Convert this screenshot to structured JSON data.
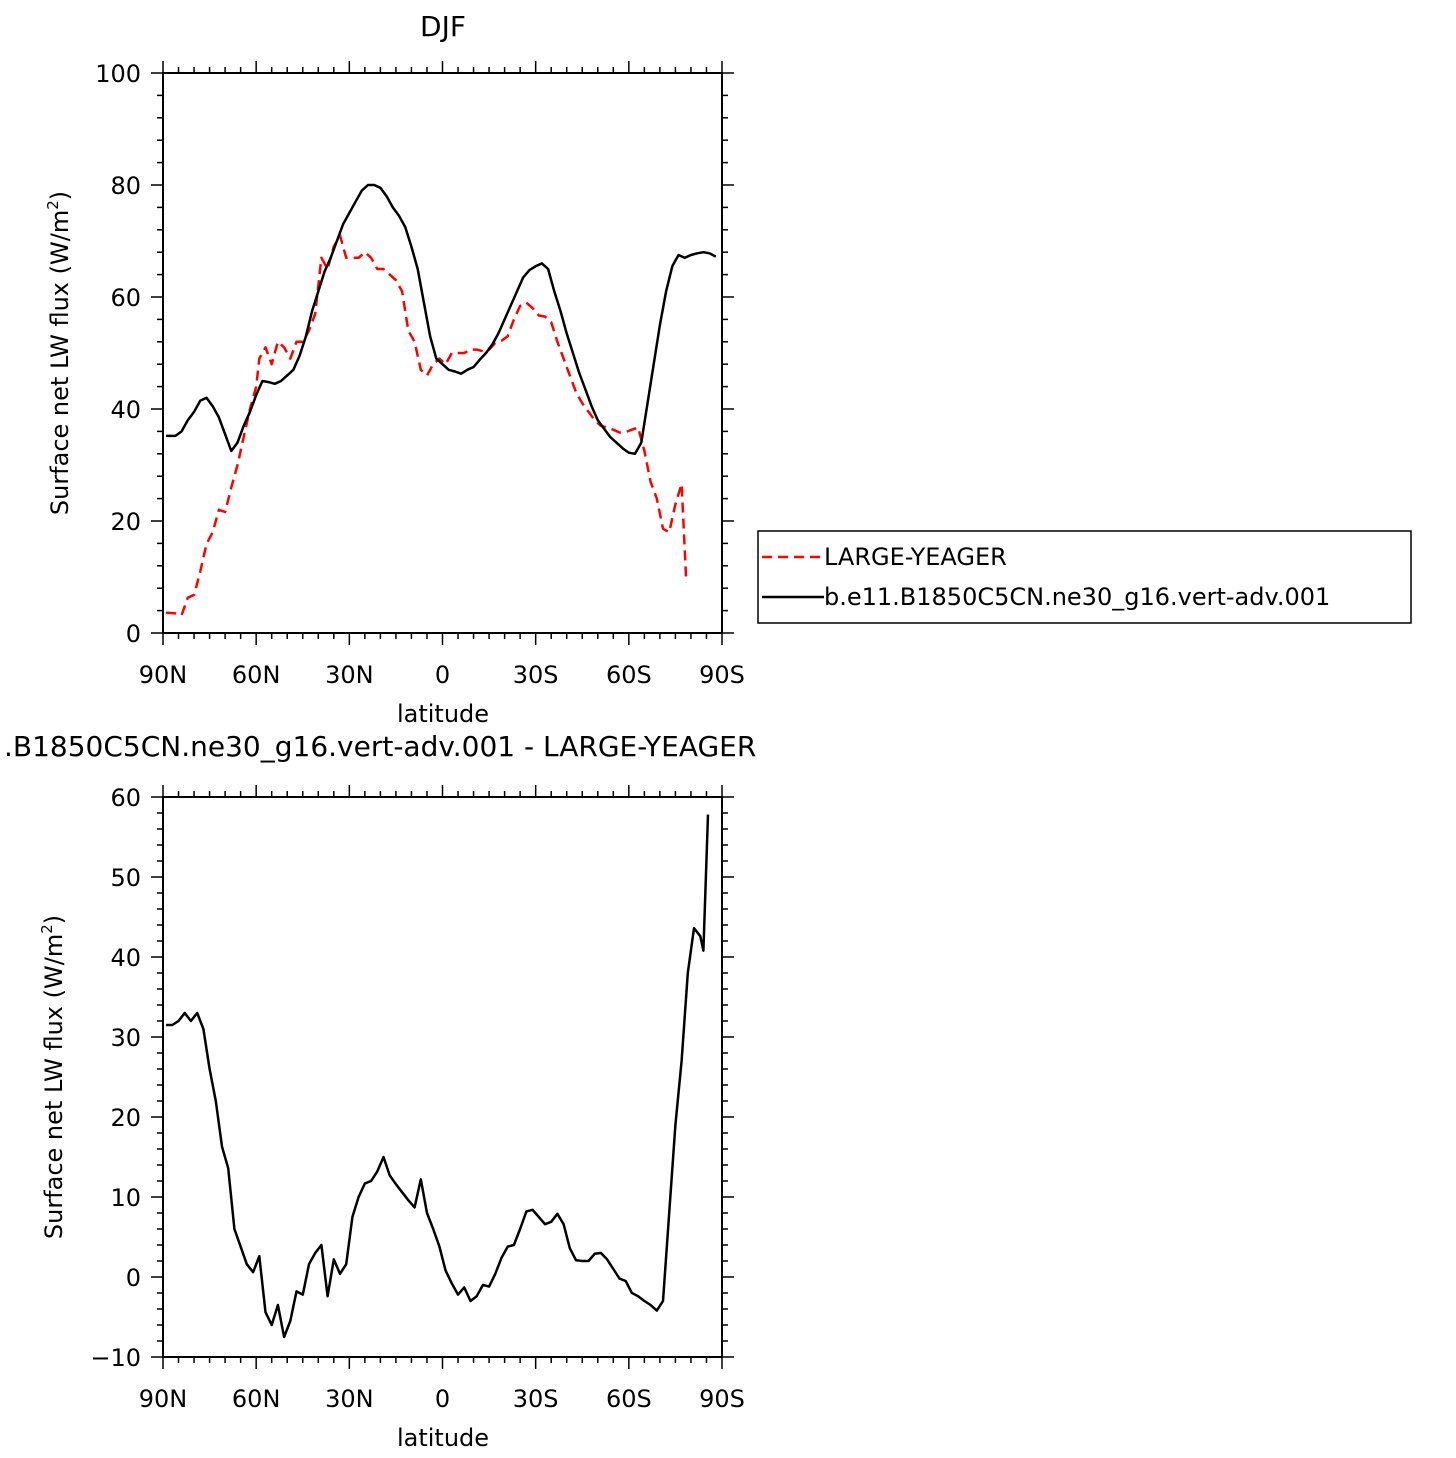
{
  "chart_data": [
    {
      "type": "line",
      "title": "DJF",
      "xlabel": "latitude",
      "ylabel": "Surface net LW flux (W/m",
      "ylabel_sup": "2",
      "ylabel_close": ")",
      "x_ticks": [
        {
          "value": -90,
          "label": "90N"
        },
        {
          "value": -60,
          "label": "60N"
        },
        {
          "value": -30,
          "label": "30N"
        },
        {
          "value": 0,
          "label": "0"
        },
        {
          "value": 30,
          "label": "30S"
        },
        {
          "value": 60,
          "label": "60S"
        },
        {
          "value": 90,
          "label": "90S"
        }
      ],
      "y_ticks": [
        0,
        20,
        40,
        60,
        80,
        100
      ],
      "xlim": [
        -90,
        90
      ],
      "ylim": [
        0,
        100
      ],
      "legend": {
        "placement": "right-middle"
      },
      "series": [
        {
          "name": "LARGE-YEAGER",
          "color": "#ff0000",
          "dash": "dashed",
          "points": [
            [
              -89,
              3.6
            ],
            [
              -86,
              3.5
            ],
            [
              -84,
              3.2
            ],
            [
              -82,
              6.3
            ],
            [
              -80,
              6.8
            ],
            [
              -78,
              11
            ],
            [
              -76,
              15.9
            ],
            [
              -74,
              18
            ],
            [
              -72,
              22
            ],
            [
              -70,
              21.6
            ],
            [
              -68,
              26
            ],
            [
              -66,
              30
            ],
            [
              -64,
              35
            ],
            [
              -62,
              40
            ],
            [
              -60,
              44
            ],
            [
              -59,
              49
            ],
            [
              -57,
              51
            ],
            [
              -55,
              48
            ],
            [
              -53,
              52
            ],
            [
              -51,
              51
            ],
            [
              -49,
              49
            ],
            [
              -47,
              52
            ],
            [
              -45,
              52
            ],
            [
              -43,
              54
            ],
            [
              -41,
              57
            ],
            [
              -39,
              67
            ],
            [
              -37,
              65
            ],
            [
              -35,
              69
            ],
            [
              -33,
              71
            ],
            [
              -31,
              67
            ],
            [
              -29,
              67
            ],
            [
              -27,
              67
            ],
            [
              -25,
              68
            ],
            [
              -23,
              67
            ],
            [
              -21,
              65
            ],
            [
              -19,
              65
            ],
            [
              -17,
              64
            ],
            [
              -15,
              63
            ],
            [
              -13,
              61
            ],
            [
              -11,
              54
            ],
            [
              -9,
              52
            ],
            [
              -7,
              47
            ],
            [
              -5,
              46
            ],
            [
              -3,
              48
            ],
            [
              -1,
              49
            ],
            [
              1,
              48
            ],
            [
              3,
              50
            ],
            [
              5,
              50
            ],
            [
              7,
              50
            ],
            [
              9,
              50.6
            ],
            [
              11,
              50.6
            ],
            [
              13,
              50.3
            ],
            [
              15,
              50.6
            ],
            [
              17,
              51.8
            ],
            [
              19,
              52.2
            ],
            [
              21,
              53
            ],
            [
              23,
              56
            ],
            [
              25,
              58.4
            ],
            [
              27,
              59
            ],
            [
              29,
              58
            ],
            [
              31,
              56.7
            ],
            [
              33,
              56.5
            ],
            [
              35,
              55.5
            ],
            [
              37,
              52
            ],
            [
              39,
              49
            ],
            [
              41,
              46
            ],
            [
              43,
              43
            ],
            [
              45,
              41
            ],
            [
              47,
              39.5
            ],
            [
              49,
              38
            ],
            [
              51,
              37
            ],
            [
              53,
              36.7
            ],
            [
              55,
              36.3
            ],
            [
              57,
              35.8
            ],
            [
              59,
              35.9
            ],
            [
              61,
              36.3
            ],
            [
              63,
              36.7
            ],
            [
              65,
              32.5
            ],
            [
              67,
              27
            ],
            [
              69,
              24
            ],
            [
              71,
              18.6
            ],
            [
              73,
              18
            ],
            [
              75,
              23
            ],
            [
              77,
              26.6
            ],
            [
              78.5,
              9
            ]
          ]
        },
        {
          "name": "b.e11.B1850C5CN.ne30_g16.vert-adv.001",
          "color": "#000000",
          "dash": "solid",
          "points": [
            [
              -89,
              35.2
            ],
            [
              -86,
              35.2
            ],
            [
              -84,
              36
            ],
            [
              -82,
              38
            ],
            [
              -80,
              39.5
            ],
            [
              -78,
              41.5
            ],
            [
              -76,
              42
            ],
            [
              -74,
              40.5
            ],
            [
              -72,
              38.5
            ],
            [
              -70,
              35.5
            ],
            [
              -68,
              32.5
            ],
            [
              -66,
              34
            ],
            [
              -64,
              37
            ],
            [
              -62,
              39.5
            ],
            [
              -60,
              42.5
            ],
            [
              -58,
              45
            ],
            [
              -56,
              44.8
            ],
            [
              -54,
              44.5
            ],
            [
              -52,
              45
            ],
            [
              -50,
              46
            ],
            [
              -48,
              47
            ],
            [
              -46,
              49.5
            ],
            [
              -44,
              53
            ],
            [
              -42,
              57.5
            ],
            [
              -40,
              61
            ],
            [
              -38,
              64.5
            ],
            [
              -36,
              67
            ],
            [
              -34,
              70
            ],
            [
              -32,
              73
            ],
            [
              -30,
              75
            ],
            [
              -28,
              77
            ],
            [
              -26,
              79
            ],
            [
              -24,
              80
            ],
            [
              -22,
              80
            ],
            [
              -20,
              79.5
            ],
            [
              -18,
              78
            ],
            [
              -16,
              76
            ],
            [
              -14,
              74.5
            ],
            [
              -12,
              72.5
            ],
            [
              -10,
              69
            ],
            [
              -8,
              65
            ],
            [
              -6,
              59
            ],
            [
              -4,
              53
            ],
            [
              -2,
              49
            ],
            [
              0,
              48
            ],
            [
              2,
              47
            ],
            [
              4,
              46.7
            ],
            [
              6,
              46.3
            ],
            [
              8,
              47
            ],
            [
              10,
              47.5
            ],
            [
              12,
              48.8
            ],
            [
              14,
              50
            ],
            [
              16,
              51.5
            ],
            [
              18,
              53.5
            ],
            [
              20,
              56
            ],
            [
              22,
              58.5
            ],
            [
              24,
              61
            ],
            [
              26,
              63.5
            ],
            [
              28,
              64.8
            ],
            [
              30,
              65.5
            ],
            [
              32,
              66
            ],
            [
              34,
              65
            ],
            [
              36,
              61
            ],
            [
              38,
              57.5
            ],
            [
              40,
              53.5
            ],
            [
              42,
              50
            ],
            [
              44,
              46.5
            ],
            [
              46,
              43.5
            ],
            [
              48,
              40.5
            ],
            [
              50,
              38
            ],
            [
              52,
              36.5
            ],
            [
              54,
              35
            ],
            [
              56,
              34
            ],
            [
              58,
              33
            ],
            [
              60,
              32.2
            ],
            [
              62,
              32
            ],
            [
              64,
              34
            ],
            [
              66,
              41
            ],
            [
              68,
              48
            ],
            [
              70,
              55
            ],
            [
              72,
              61
            ],
            [
              74,
              65.5
            ],
            [
              76,
              67.5
            ],
            [
              78,
              67
            ],
            [
              80,
              67.5
            ],
            [
              82,
              67.8
            ],
            [
              84,
              68
            ],
            [
              86,
              67.8
            ],
            [
              88,
              67.2
            ]
          ]
        }
      ]
    },
    {
      "type": "line",
      "title": ".B1850C5CN.ne30_g16.vert-adv.001 - LARGE-YEAGER",
      "xlabel": "latitude",
      "ylabel": "Surface net LW flux (W/m",
      "ylabel_sup": "2",
      "ylabel_close": ")",
      "x_ticks": [
        {
          "value": -90,
          "label": "90N"
        },
        {
          "value": -60,
          "label": "60N"
        },
        {
          "value": -30,
          "label": "30N"
        },
        {
          "value": 0,
          "label": "0"
        },
        {
          "value": 30,
          "label": "30S"
        },
        {
          "value": 60,
          "label": "60S"
        },
        {
          "value": 90,
          "label": "90S"
        }
      ],
      "y_ticks": [
        -10,
        0,
        10,
        20,
        30,
        40,
        50,
        60
      ],
      "xlim": [
        -90,
        90
      ],
      "ylim": [
        -10,
        60
      ],
      "series": [
        {
          "color": "#000000",
          "dash": "solid",
          "points": [
            [
              -89,
              31.5
            ],
            [
              -87,
              31.5
            ],
            [
              -85,
              32
            ],
            [
              -83,
              33
            ],
            [
              -81,
              32
            ],
            [
              -79,
              33
            ],
            [
              -77,
              31
            ],
            [
              -75,
              26
            ],
            [
              -73,
              22
            ],
            [
              -71,
              16.3
            ],
            [
              -69,
              13.6
            ],
            [
              -67,
              6
            ],
            [
              -65,
              3.8
            ],
            [
              -63,
              1.6
            ],
            [
              -61,
              0.6
            ],
            [
              -59,
              2.6
            ],
            [
              -57,
              -4.4
            ],
            [
              -55,
              -6
            ],
            [
              -53,
              -3.5
            ],
            [
              -51,
              -7.5
            ],
            [
              -49,
              -5.5
            ],
            [
              -47,
              -1.8
            ],
            [
              -45,
              -2.2
            ],
            [
              -43,
              1.6
            ],
            [
              -41,
              3
            ],
            [
              -39,
              4
            ],
            [
              -37,
              -2.4
            ],
            [
              -35,
              2.2
            ],
            [
              -33,
              0.4
            ],
            [
              -31,
              1.6
            ],
            [
              -29,
              7.5
            ],
            [
              -27,
              10
            ],
            [
              -25,
              11.7
            ],
            [
              -23,
              12
            ],
            [
              -21,
              13.2
            ],
            [
              -19,
              15
            ],
            [
              -17,
              12.7
            ],
            [
              -15,
              11.6
            ],
            [
              -13,
              10.6
            ],
            [
              -11,
              9.6
            ],
            [
              -9,
              8.7
            ],
            [
              -7,
              12.2
            ],
            [
              -5,
              8
            ],
            [
              -3,
              6
            ],
            [
              -1,
              3.8
            ],
            [
              1,
              0.8
            ],
            [
              3,
              -0.8
            ],
            [
              5,
              -2.2
            ],
            [
              7,
              -1.3
            ],
            [
              9,
              -3
            ],
            [
              11,
              -2.4
            ],
            [
              13,
              -1
            ],
            [
              15,
              -1.2
            ],
            [
              17,
              0.4
            ],
            [
              19,
              2.4
            ],
            [
              21,
              3.8
            ],
            [
              23,
              4
            ],
            [
              25,
              6
            ],
            [
              27,
              8.2
            ],
            [
              29,
              8.4
            ],
            [
              31,
              7.5
            ],
            [
              33,
              6.6
            ],
            [
              35,
              6.9
            ],
            [
              37,
              7.9
            ],
            [
              39,
              6.6
            ],
            [
              41,
              3.6
            ],
            [
              43,
              2.1
            ],
            [
              45,
              2
            ],
            [
              47,
              2
            ],
            [
              49,
              2.9
            ],
            [
              51,
              3
            ],
            [
              53,
              2.2
            ],
            [
              55,
              1
            ],
            [
              57,
              -0.2
            ],
            [
              59,
              -0.5
            ],
            [
              61,
              -2
            ],
            [
              63,
              -2.4
            ],
            [
              65,
              -3
            ],
            [
              67,
              -3.5
            ],
            [
              69,
              -4.2
            ],
            [
              71,
              -3
            ],
            [
              73,
              8
            ],
            [
              75,
              19
            ],
            [
              77,
              27
            ],
            [
              79,
              38
            ],
            [
              81,
              43.6
            ],
            [
              83,
              42.6
            ],
            [
              84,
              40.8
            ],
            [
              85.5,
              57.8
            ]
          ]
        }
      ]
    }
  ]
}
